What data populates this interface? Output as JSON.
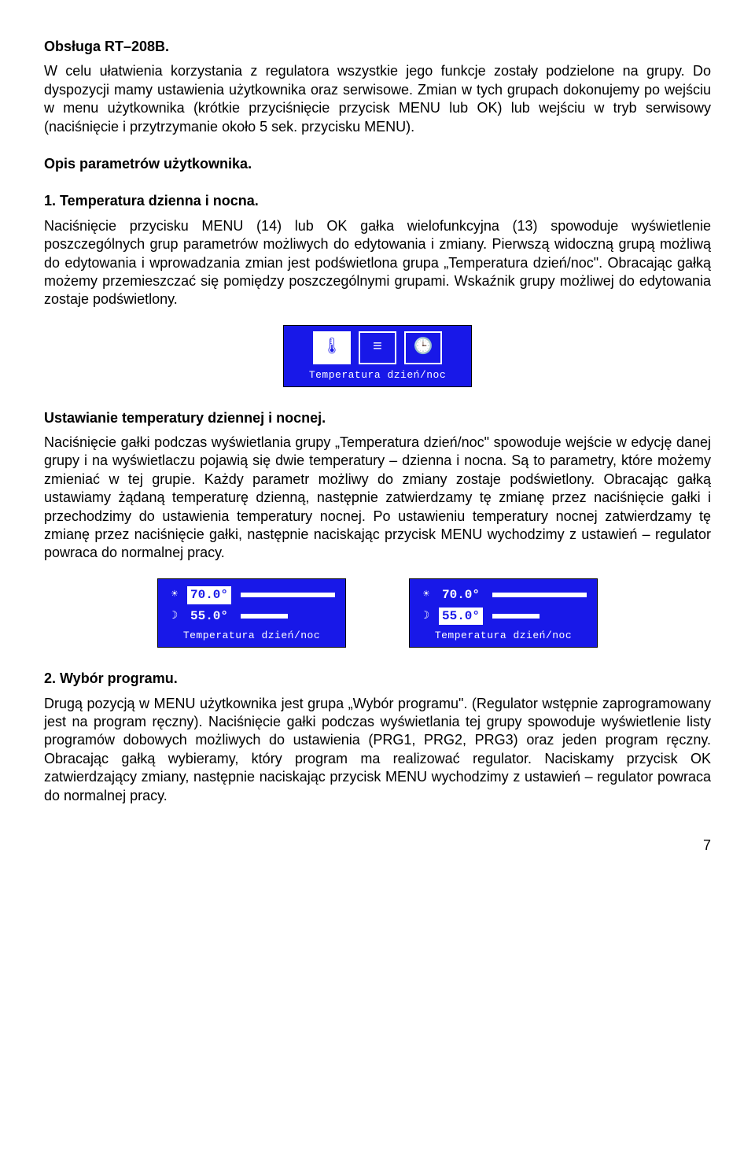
{
  "title": "Obsługa RT–208B.",
  "intro1": "W celu ułatwienia korzystania z regulatora wszystkie jego funkcje zostały podzielone na grupy. Do dyspozycji mamy ustawienia użytkownika oraz serwisowe. Zmian w tych grupach dokonujemy po wejściu w menu użytkownika (krótkie przyciśnięcie przycisk MENU lub OK) lub wejściu w tryb serwisowy (naciśnięcie i przytrzymanie około 5 sek. przycisku MENU).",
  "opis_heading": "Opis parametrów użytkownika.",
  "sec1_heading": "1. Temperatura dzienna i nocna.",
  "sec1_body": "Naciśnięcie przycisku MENU (14) lub OK gałka wielofunkcyjna (13) spowoduje wyświetlenie poszczególnych grup parametrów możliwych do edytowania i zmiany. Pierwszą widoczną grupą możliwą do edytowania i wprowadzania zmian jest podświetlona grupa „Temperatura dzień/noc\". Obracając gałką możemy przemieszczać się pomiędzy poszczególnymi grupami. Wskaźnik grupy możliwej do edytowania zostaje podświetlony.",
  "lcd1_caption": "Temperatura dzień/noc",
  "ustaw_heading": "Ustawianie temperatury dziennej i nocnej.",
  "ustaw_body": "Naciśnięcie gałki podczas wyświetlania grupy „Temperatura dzień/noc\" spowoduje wejście w edycję danej grupy i na wyświetlaczu pojawią się dwie temperatury – dzienna i nocna. Są to parametry, które możemy zmieniać w tej grupie. Każdy parametr możliwy do zmiany zostaje podświetlony. Obracając gałką ustawiamy żądaną temperaturę dzienną, następnie zatwierdzamy tę zmianę przez naciśnięcie gałki i przechodzimy do ustawienia temperatury nocnej. Po ustawieniu temperatury nocnej zatwierdzamy tę zmianę przez naciśnięcie gałki, następnie naciskając przycisk MENU wychodzimy z ustawień – regulator powraca do  normalnej pracy.",
  "lcd2_day": "70.0°",
  "lcd2_night": "55.0°",
  "lcd2_caption": "Temperatura dzień/noc",
  "sec2_heading": "2. Wybór programu.",
  "sec2_body": "Drugą pozycją w MENU użytkownika jest grupa „Wybór programu\". (Regulator wstępnie zaprogramowany jest na program ręczny). Naciśnięcie gałki podczas wyświetlania tej grupy spowoduje wyświetlenie listy programów dobowych możliwych do ustawienia (PRG1, PRG2, PRG3) oraz jeden program ręczny. Obracając gałką wybieramy, który program ma realizować regulator. Naciskamy przycisk OK zatwierdzający zmiany, następnie naciskając przycisk MENU wychodzimy z ustawień – regulator powraca do normalnej pracy.",
  "page_number": "7",
  "icon_thermo": "🌡",
  "icon_list": "≡",
  "icon_clock": "🕒",
  "icon_sun": "☀",
  "icon_moon": "☽"
}
